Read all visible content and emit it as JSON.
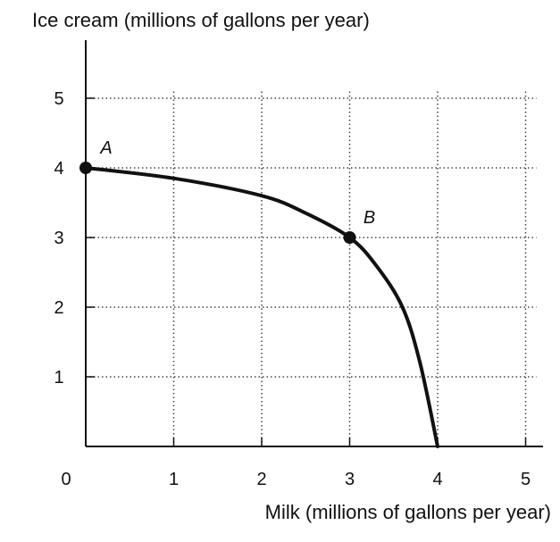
{
  "chart_data": {
    "type": "line",
    "title": "",
    "xlabel": "Milk (millions of gallons per year)",
    "ylabel": "Ice cream (millions of gallons per year)",
    "xlim": [
      0,
      5
    ],
    "ylim": [
      0,
      5
    ],
    "origin_label": "0",
    "x_ticks": [
      {
        "value": 1,
        "label": "1"
      },
      {
        "value": 2,
        "label": "2"
      },
      {
        "value": 3,
        "label": "3"
      },
      {
        "value": 4,
        "label": "4"
      },
      {
        "value": 5,
        "label": "5"
      }
    ],
    "y_ticks": [
      {
        "value": 1,
        "label": "1"
      },
      {
        "value": 2,
        "label": "2"
      },
      {
        "value": 3,
        "label": "3"
      },
      {
        "value": 4,
        "label": "4"
      },
      {
        "value": 5,
        "label": "5"
      }
    ],
    "grid": true,
    "series": [
      {
        "x": [
          0,
          1,
          2,
          2.5,
          3,
          3.3,
          3.6,
          3.8,
          4
        ],
        "y": [
          4,
          3.85,
          3.6,
          3.35,
          3,
          2.6,
          2.0,
          1.2,
          0
        ],
        "color": "#111111"
      }
    ],
    "points": [
      {
        "label": "A",
        "x": 0,
        "y": 4
      },
      {
        "label": "B",
        "x": 3,
        "y": 3
      }
    ]
  }
}
